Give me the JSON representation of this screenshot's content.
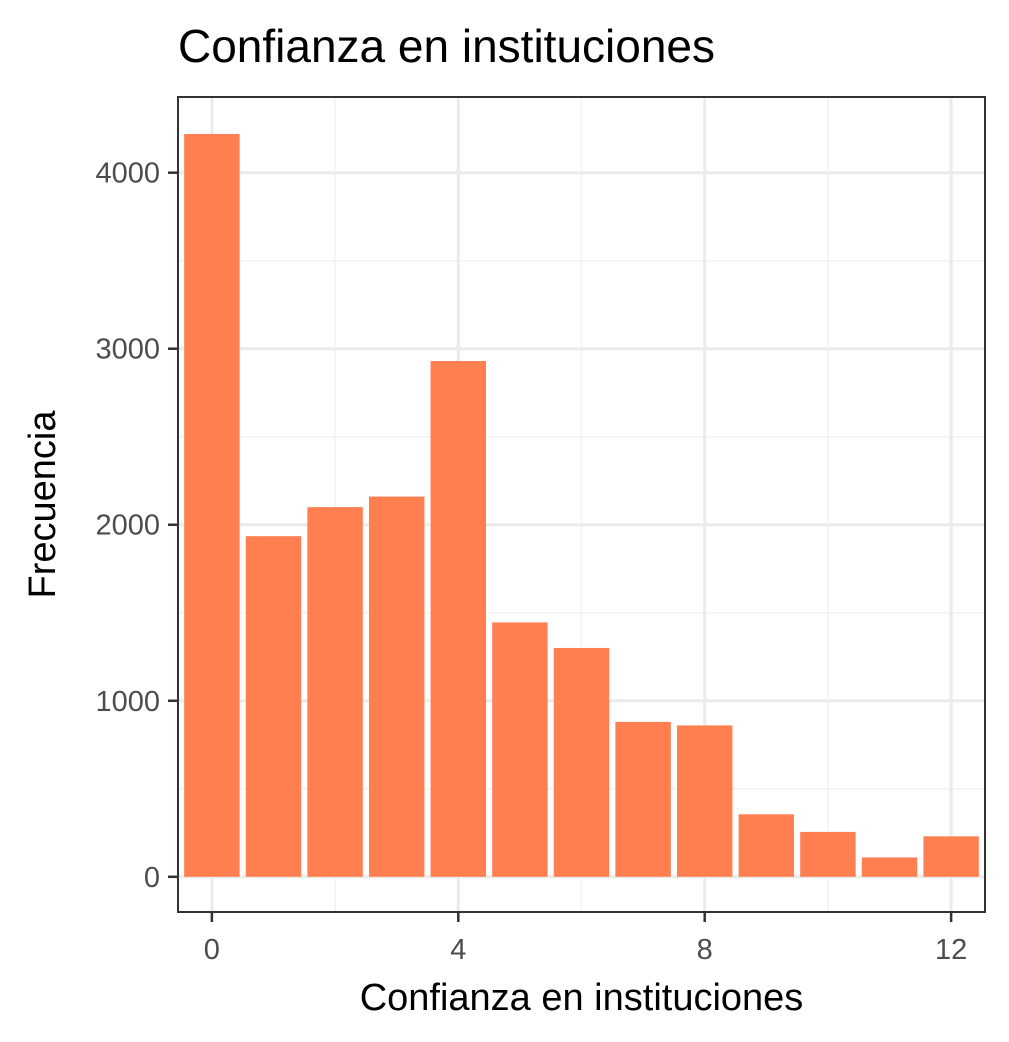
{
  "chart_data": {
    "type": "bar",
    "title": "Confianza en instituciones",
    "xlabel": "Confianza en instituciones",
    "ylabel": "Frecuencia",
    "x": [
      0,
      1,
      2,
      3,
      4,
      5,
      6,
      7,
      8,
      9,
      10,
      11,
      12
    ],
    "values": [
      4220,
      1935,
      2100,
      2160,
      2930,
      1445,
      1300,
      880,
      860,
      355,
      255,
      110,
      230
    ],
    "xlim": [
      -0.55,
      12.55
    ],
    "ylim": [
      -200,
      4430
    ],
    "xticks": [
      0,
      4,
      8,
      12
    ],
    "xtick_labels": [
      "0",
      "4",
      "8",
      "12"
    ],
    "yticks": [
      0,
      1000,
      2000,
      3000,
      4000
    ],
    "ytick_labels": [
      "0",
      "1000",
      "2000",
      "3000",
      "4000"
    ],
    "bar_color": "#ff7f50",
    "grid": true
  }
}
